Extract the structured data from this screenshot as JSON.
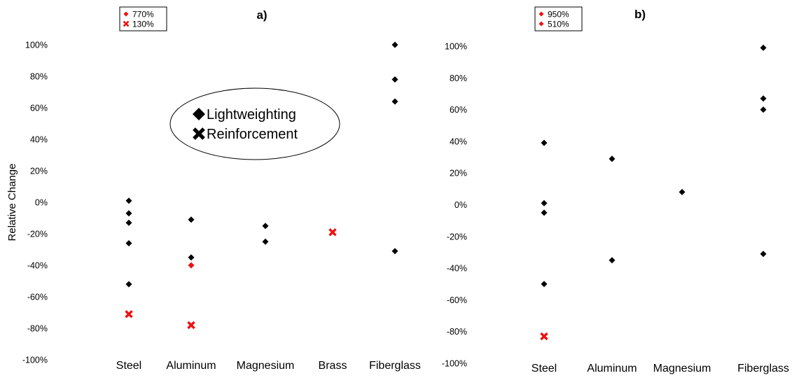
{
  "chart_data": [
    {
      "type": "scatter",
      "panel_label": "a)",
      "ylabel": "Relative Change",
      "ylim": [
        -100,
        100
      ],
      "yticks": [
        "100%",
        "80%",
        "60%",
        "40%",
        "20%",
        "0%",
        "-20%",
        "-40%",
        "-60%",
        "-80%",
        "-100%"
      ],
      "categories": [
        "Steel",
        "Aluminum",
        "Magnesium",
        "Brass",
        "Fiberglass"
      ],
      "series": [
        {
          "name": "Lightweighting",
          "marker": "diamond",
          "color": "#000000",
          "points": [
            {
              "category": "Steel",
              "y": 1
            },
            {
              "category": "Steel",
              "y": -7
            },
            {
              "category": "Steel",
              "y": -13
            },
            {
              "category": "Steel",
              "y": -26
            },
            {
              "category": "Steel",
              "y": -52
            },
            {
              "category": "Aluminum",
              "y": -11
            },
            {
              "category": "Aluminum",
              "y": -35
            },
            {
              "category": "Magnesium",
              "y": -15
            },
            {
              "category": "Magnesium",
              "y": -25
            },
            {
              "category": "Fiberglass",
              "y": 100
            },
            {
              "category": "Fiberglass",
              "y": 78
            },
            {
              "category": "Fiberglass",
              "y": 64
            },
            {
              "category": "Fiberglass",
              "y": -31
            }
          ]
        },
        {
          "name": "Lightweighting (highlighted)",
          "marker": "diamond",
          "color": "#ee1111",
          "points": [
            {
              "category": "Aluminum",
              "y": -40
            }
          ]
        },
        {
          "name": "Reinforcement",
          "marker": "x",
          "color": "#ee1111",
          "points": [
            {
              "category": "Steel",
              "y": -71
            },
            {
              "category": "Aluminum",
              "y": -78
            },
            {
              "category": "Brass",
              "y": -19
            }
          ]
        }
      ],
      "offscale_legend": [
        {
          "marker": "diamond",
          "color": "#ee1111",
          "label": "770%"
        },
        {
          "marker": "x",
          "color": "#ee1111",
          "label": "130%"
        }
      ],
      "series_legend": [
        {
          "marker": "diamond",
          "color": "#000000",
          "label": "Lightweighting"
        },
        {
          "marker": "x",
          "color": "#000000",
          "label": "Reinforcement"
        }
      ]
    },
    {
      "type": "scatter",
      "panel_label": "b)",
      "ylim": [
        -100,
        100
      ],
      "yticks": [
        "100%",
        "80%",
        "60%",
        "40%",
        "20%",
        "0%",
        "-20%",
        "-40%",
        "-60%",
        "-80%",
        "-100%"
      ],
      "categories": [
        "Steel",
        "Aluminum",
        "Magnesium",
        "Fiberglass"
      ],
      "series": [
        {
          "name": "Lightweighting",
          "marker": "diamond",
          "color": "#000000",
          "points": [
            {
              "category": "Steel",
              "y": 39
            },
            {
              "category": "Steel",
              "y": 1
            },
            {
              "category": "Steel",
              "y": -5
            },
            {
              "category": "Steel",
              "y": -50
            },
            {
              "category": "Aluminum",
              "y": 29
            },
            {
              "category": "Aluminum",
              "y": -35
            },
            {
              "category": "Magnesium",
              "y": 8
            },
            {
              "category": "Fiberglass",
              "y": 99
            },
            {
              "category": "Fiberglass",
              "y": 67
            },
            {
              "category": "Fiberglass",
              "y": 60
            },
            {
              "category": "Fiberglass",
              "y": -31
            }
          ]
        },
        {
          "name": "Reinforcement",
          "marker": "x",
          "color": "#ee1111",
          "points": [
            {
              "category": "Steel",
              "y": -83
            }
          ]
        }
      ],
      "offscale_legend": [
        {
          "marker": "diamond",
          "color": "#ee1111",
          "label": "950%"
        },
        {
          "marker": "diamond",
          "color": "#ee1111",
          "label": "510%"
        }
      ]
    }
  ]
}
